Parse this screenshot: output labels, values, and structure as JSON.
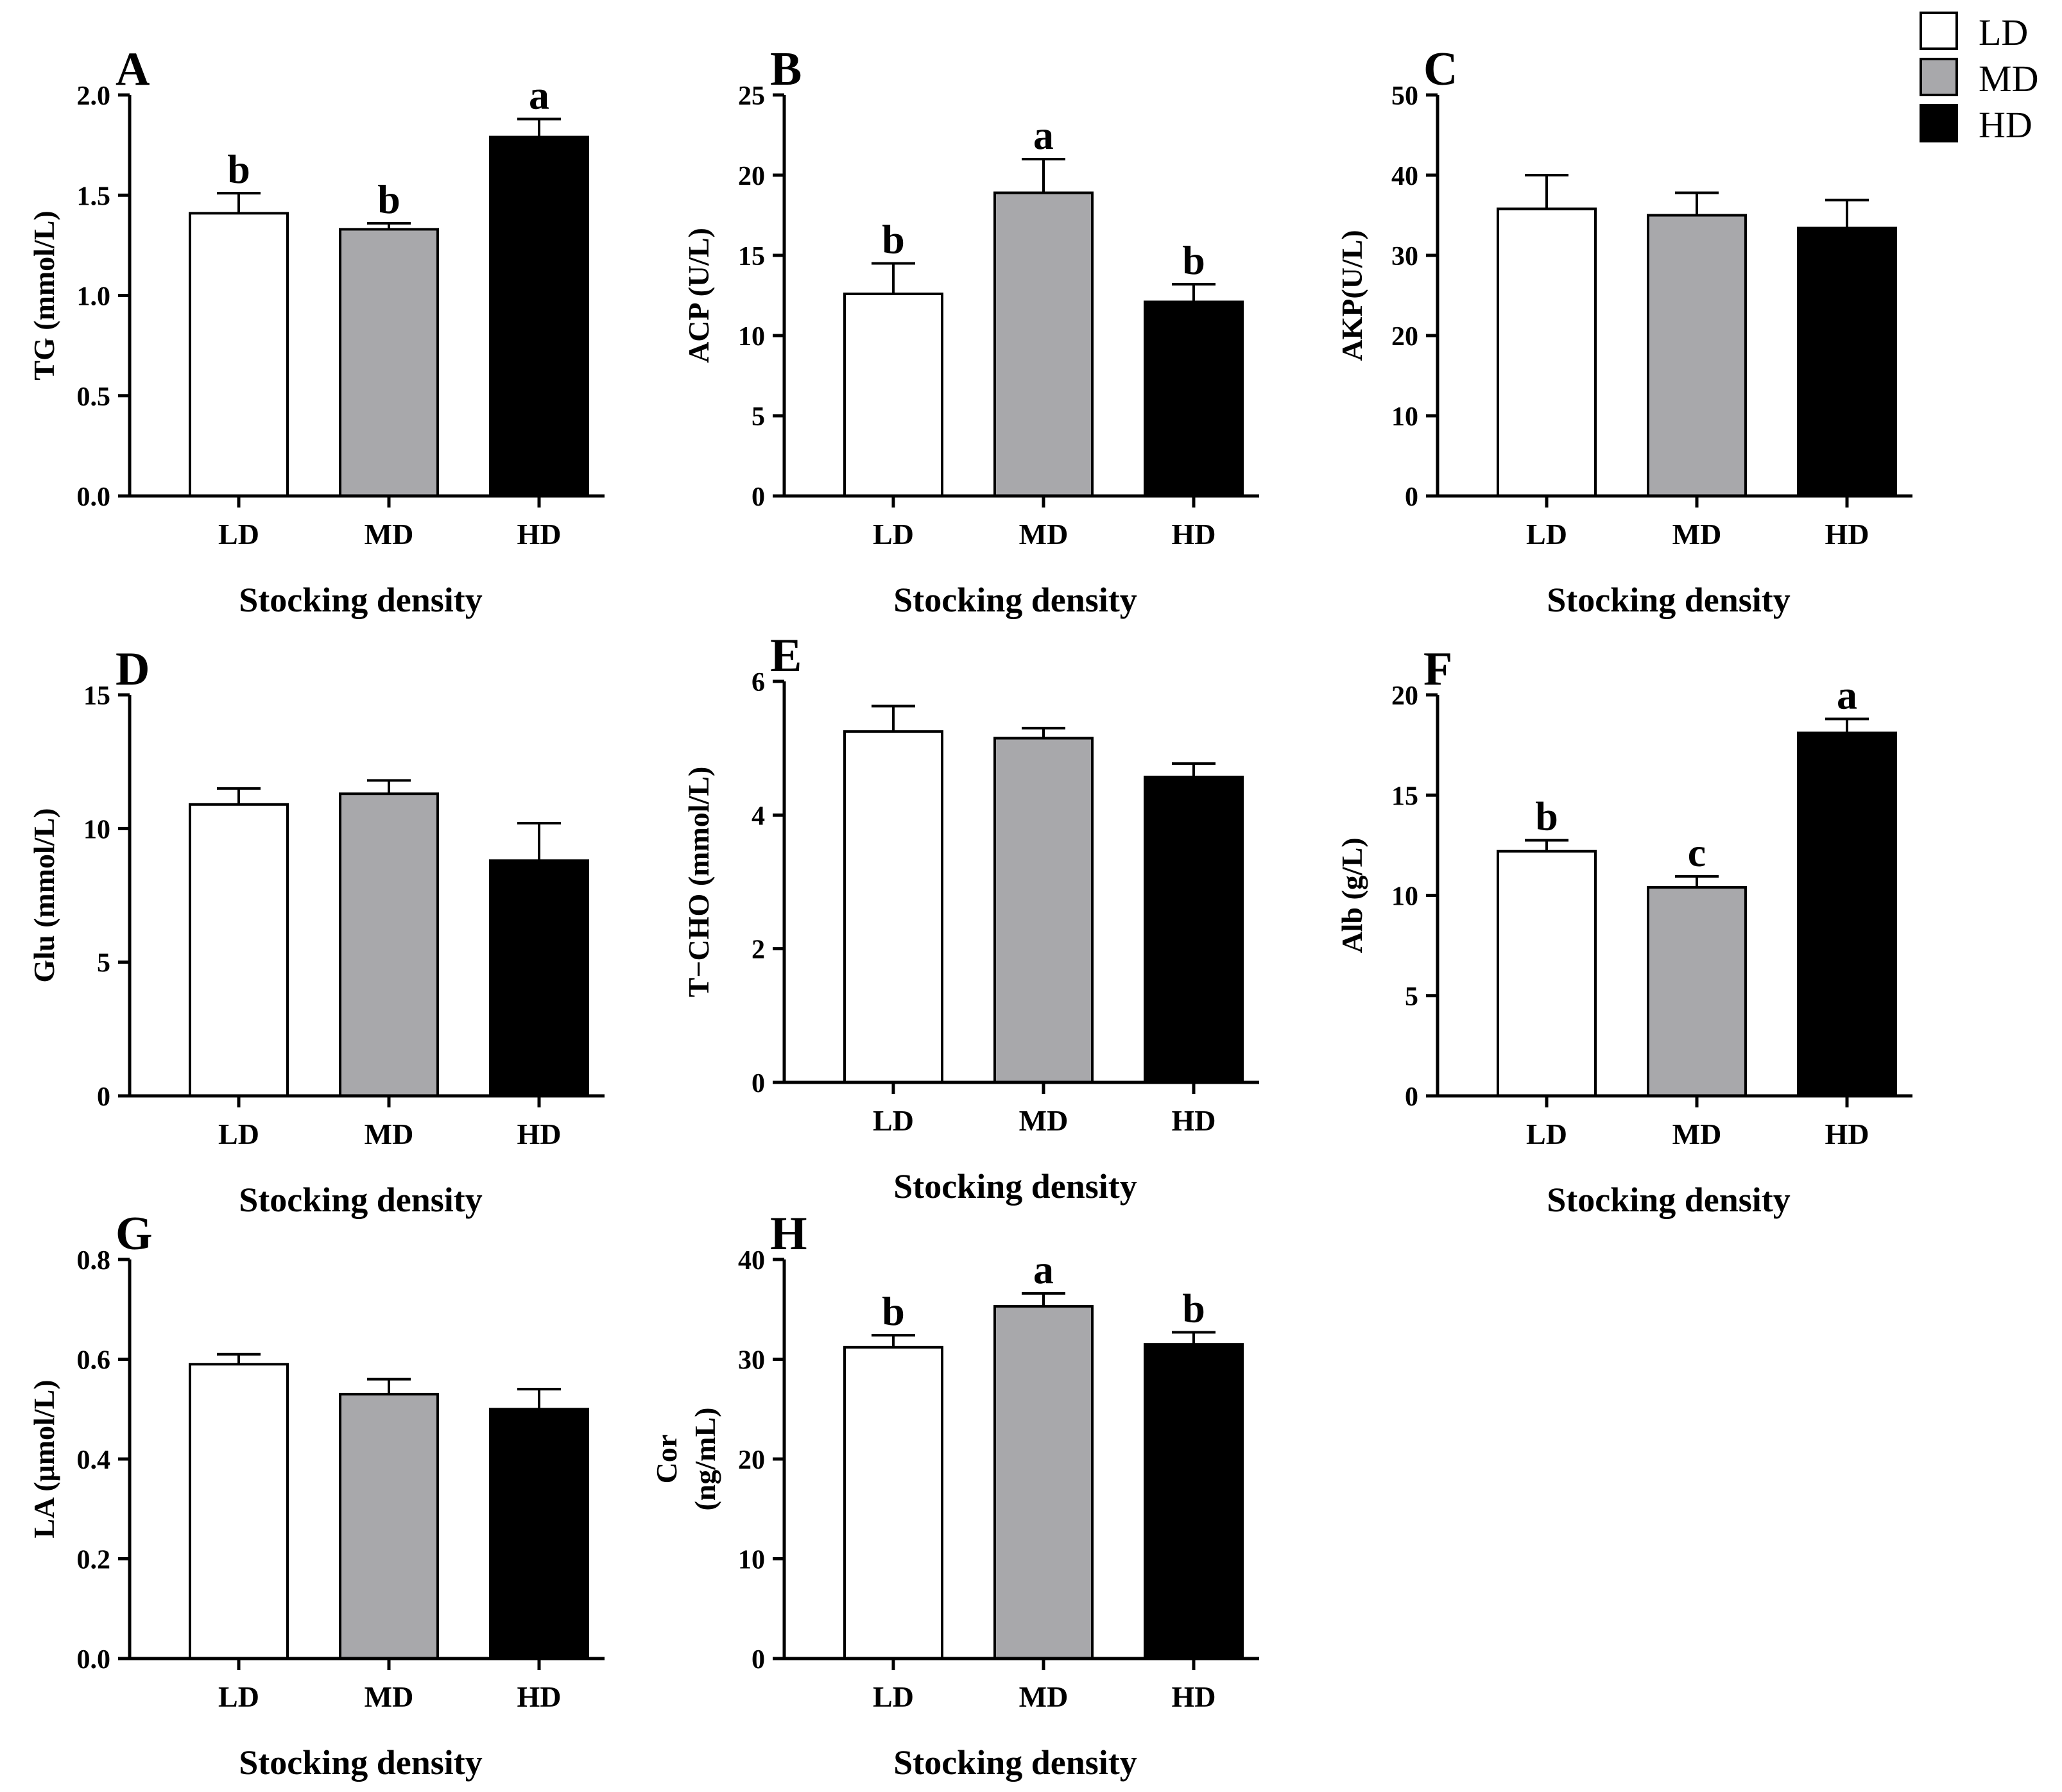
{
  "legend": [
    {
      "label": "LD",
      "fill": "#ffffff"
    },
    {
      "label": "MD",
      "fill": "#a8a8ab"
    },
    {
      "label": "HD",
      "fill": "#000000"
    }
  ],
  "chart_data": [
    {
      "panel": "A",
      "type": "bar",
      "categories": [
        "LD",
        "MD",
        "HD"
      ],
      "values": [
        1.41,
        1.33,
        1.79
      ],
      "errors": [
        0.1,
        0.03,
        0.09
      ],
      "letters": [
        "b",
        "b",
        "a"
      ],
      "ylabel": "TG (mmol/L)",
      "xlabel": "Stocking density",
      "ylim": [
        0,
        2.0
      ],
      "yticks": [
        "0.0",
        "0.5",
        "1.0",
        "1.5",
        "2.0"
      ]
    },
    {
      "panel": "B",
      "type": "bar",
      "categories": [
        "LD",
        "MD",
        "HD"
      ],
      "values": [
        12.6,
        18.9,
        12.1
      ],
      "errors": [
        1.9,
        2.1,
        1.1
      ],
      "letters": [
        "b",
        "a",
        "b"
      ],
      "ylabel": "ACP (U/L)",
      "xlabel": "Stocking density",
      "ylim": [
        0,
        25
      ],
      "yticks": [
        "0",
        "5",
        "10",
        "15",
        "20",
        "25"
      ]
    },
    {
      "panel": "C",
      "type": "bar",
      "categories": [
        "LD",
        "MD",
        "HD"
      ],
      "values": [
        35.8,
        35.0,
        33.4
      ],
      "errors": [
        4.2,
        2.8,
        3.5
      ],
      "letters": [
        "",
        "",
        ""
      ],
      "ylabel": "AKP(U/L)",
      "xlabel": "Stocking density",
      "ylim": [
        0,
        50
      ],
      "yticks": [
        "0",
        "10",
        "20",
        "30",
        "40",
        "50"
      ]
    },
    {
      "panel": "D",
      "type": "bar",
      "categories": [
        "LD",
        "MD",
        "HD"
      ],
      "values": [
        10.9,
        11.3,
        8.8
      ],
      "errors": [
        0.6,
        0.5,
        1.4
      ],
      "letters": [
        "",
        "",
        ""
      ],
      "ylabel": "Glu (mmol/L)",
      "xlabel": "Stocking density",
      "ylim": [
        0,
        15
      ],
      "yticks": [
        "0",
        "5",
        "10",
        "15"
      ]
    },
    {
      "panel": "E",
      "type": "bar",
      "categories": [
        "LD",
        "MD",
        "HD"
      ],
      "values": [
        5.25,
        5.15,
        4.57
      ],
      "errors": [
        0.38,
        0.15,
        0.2
      ],
      "letters": [
        "",
        "",
        ""
      ],
      "ylabel": "T−CHO (mmol/L)",
      "xlabel": "Stocking density",
      "ylim": [
        0,
        6
      ],
      "yticks": [
        "0",
        "2",
        "4",
        "6"
      ]
    },
    {
      "panel": "F",
      "type": "bar",
      "categories": [
        "LD",
        "MD",
        "HD"
      ],
      "values": [
        12.2,
        10.4,
        18.1
      ],
      "errors": [
        0.55,
        0.55,
        0.7
      ],
      "letters": [
        "b",
        "c",
        "a"
      ],
      "ylabel": "Alb (g/L)",
      "xlabel": "Stocking density",
      "ylim": [
        0,
        20
      ],
      "yticks": [
        "0",
        "5",
        "10",
        "15",
        "20"
      ]
    },
    {
      "panel": "G",
      "type": "bar",
      "categories": [
        "LD",
        "MD",
        "HD"
      ],
      "values": [
        0.59,
        0.53,
        0.5
      ],
      "errors": [
        0.02,
        0.03,
        0.04
      ],
      "letters": [
        "",
        "",
        ""
      ],
      "ylabel": "LA (μmol/L)",
      "xlabel": "Stocking density",
      "ylim": [
        0,
        0.8
      ],
      "yticks": [
        "0.0",
        "0.2",
        "0.4",
        "0.6",
        "0.8"
      ]
    },
    {
      "panel": "H",
      "type": "bar",
      "categories": [
        "LD",
        "MD",
        "HD"
      ],
      "values": [
        31.2,
        35.3,
        31.5
      ],
      "errors": [
        1.2,
        1.3,
        1.2
      ],
      "letters": [
        "b",
        "a",
        "b"
      ],
      "ylabel": [
        "Cor",
        "(ng/mL)"
      ],
      "xlabel": "Stocking density",
      "ylim": [
        0,
        40
      ],
      "yticks": [
        "0",
        "10",
        "20",
        "30",
        "40"
      ]
    }
  ]
}
